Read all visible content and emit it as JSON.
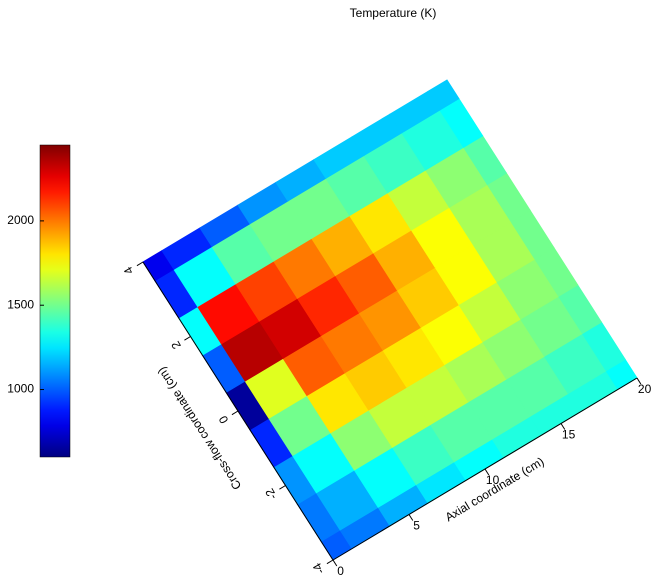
{
  "chart_data": {
    "type": "surface",
    "title": "Temperature (K)",
    "xlabel": "Axial coordinate (cm)",
    "ylabel": "Cross-flow coordinate (cm)",
    "xlim": [
      0,
      20
    ],
    "xticks": [
      0,
      5,
      10,
      15,
      20
    ],
    "ylim": [
      -4,
      4
    ],
    "yticks": [
      -4,
      -2,
      0,
      2,
      4
    ],
    "x": [
      0,
      2.5,
      5,
      7.5,
      10,
      12.5,
      15,
      17.5,
      20
    ],
    "y": [
      -4,
      -3,
      -2,
      -1,
      0,
      1,
      2,
      3,
      4
    ],
    "z": [
      [
        1000,
        1050,
        1150,
        1250,
        1300,
        1350,
        1350,
        1350,
        1300
      ],
      [
        1050,
        1150,
        1300,
        1400,
        1450,
        1450,
        1450,
        1400,
        1350
      ],
      [
        1100,
        1300,
        1550,
        1650,
        1650,
        1600,
        1550,
        1500,
        1450
      ],
      [
        900,
        1500,
        1800,
        1850,
        1800,
        1750,
        1650,
        1550,
        1500
      ],
      [
        650,
        1700,
        2050,
        2000,
        1950,
        1850,
        1750,
        1600,
        1500
      ],
      [
        1000,
        2350,
        2300,
        2150,
        2050,
        1900,
        1750,
        1600,
        1500
      ],
      [
        1300,
        2200,
        2100,
        2000,
        1900,
        1800,
        1650,
        1550,
        1450
      ],
      [
        900,
        1300,
        1450,
        1500,
        1500,
        1450,
        1400,
        1350,
        1300
      ],
      [
        800,
        900,
        1000,
        1100,
        1150,
        1200,
        1200,
        1200,
        1200
      ]
    ],
    "colormap": "jet",
    "clim": [
      600,
      2450
    ],
    "cticks": [
      1000,
      1500,
      2000
    ]
  }
}
